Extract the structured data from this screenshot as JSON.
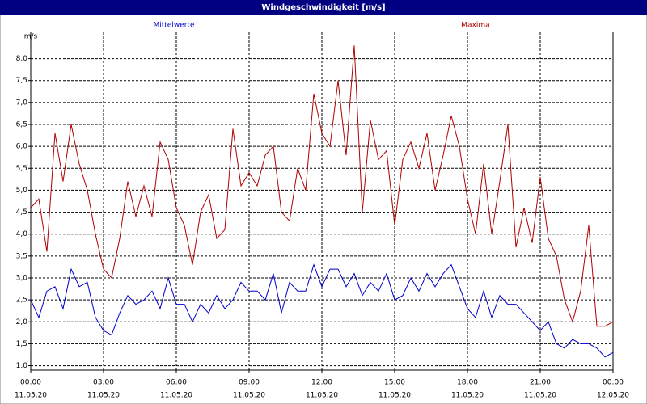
{
  "chart_data": {
    "type": "line",
    "title": "Windgeschwindigkeit [m/s]",
    "y_label": "m/s",
    "x": [
      0,
      20,
      40,
      60,
      80,
      100,
      120,
      140,
      160,
      180,
      200,
      220,
      240,
      260,
      280,
      300,
      320,
      340,
      360,
      380,
      400,
      420,
      440,
      460,
      480,
      500,
      520,
      540,
      560,
      580,
      600,
      620,
      640,
      660,
      680,
      700,
      720,
      740,
      760,
      780,
      800,
      820,
      840,
      860,
      880,
      900,
      920,
      940,
      960,
      980,
      1000,
      1020,
      1040,
      1060,
      1080,
      1100,
      1120,
      1140,
      1160,
      1180,
      1200,
      1220,
      1240,
      1260,
      1280,
      1300,
      1320,
      1340,
      1360,
      1380,
      1400,
      1420,
      1440
    ],
    "series": [
      {
        "name": "Mittelwerte",
        "color": "#0000cc",
        "values": [
          2.5,
          2.1,
          2.7,
          2.8,
          2.3,
          3.2,
          2.8,
          2.9,
          2.1,
          1.8,
          1.7,
          2.2,
          2.6,
          2.4,
          2.5,
          2.7,
          2.3,
          3.0,
          2.4,
          2.4,
          2.0,
          2.4,
          2.2,
          2.6,
          2.3,
          2.5,
          2.9,
          2.7,
          2.7,
          2.5,
          3.1,
          2.2,
          2.9,
          2.7,
          2.7,
          3.3,
          2.8,
          3.2,
          3.2,
          2.8,
          3.1,
          2.6,
          2.9,
          2.7,
          3.1,
          2.5,
          2.6,
          3.0,
          2.7,
          3.1,
          2.8,
          3.1,
          3.3,
          2.8,
          2.3,
          2.1,
          2.7,
          2.1,
          2.6,
          2.4,
          2.4,
          2.2,
          2.0,
          1.8,
          2.0,
          1.5,
          1.4,
          1.6,
          1.5,
          1.5,
          1.4,
          1.2,
          1.3
        ]
      },
      {
        "name": "Maxima",
        "color": "#b00000",
        "values": [
          4.6,
          4.8,
          3.6,
          6.3,
          5.2,
          6.5,
          5.6,
          5.0,
          4.0,
          3.2,
          3.0,
          3.9,
          5.2,
          4.4,
          5.1,
          4.4,
          6.1,
          5.7,
          4.6,
          4.2,
          3.3,
          4.5,
          4.9,
          3.9,
          4.1,
          6.4,
          5.1,
          5.4,
          5.1,
          5.8,
          6.0,
          4.5,
          4.3,
          5.5,
          5.0,
          7.2,
          6.3,
          6.0,
          7.5,
          5.8,
          8.3,
          4.5,
          6.6,
          5.7,
          5.9,
          4.2,
          5.7,
          6.1,
          5.5,
          6.3,
          5.0,
          5.8,
          6.7,
          6.0,
          4.8,
          4.0,
          5.6,
          4.0,
          5.2,
          6.5,
          3.7,
          4.6,
          3.8,
          5.3,
          3.9,
          3.5,
          2.5,
          2.0,
          2.7,
          4.2,
          1.9,
          1.9,
          2.0
        ]
      }
    ],
    "xlim": [
      0,
      1440
    ],
    "xticks": [
      {
        "value": 0,
        "label": "00:00"
      },
      {
        "value": 180,
        "label": "03:00"
      },
      {
        "value": 360,
        "label": "06:00"
      },
      {
        "value": 540,
        "label": "09:00"
      },
      {
        "value": 720,
        "label": "12:00"
      },
      {
        "value": 900,
        "label": "15:00"
      },
      {
        "value": 1080,
        "label": "18:00"
      },
      {
        "value": 1260,
        "label": "21:00"
      },
      {
        "value": 1440,
        "label": "00:00"
      }
    ],
    "xtick_dates": [
      "11.05.20",
      "11.05.20",
      "11.05.20",
      "11.05.20",
      "11.05.20",
      "11.05.20",
      "11.05.20",
      "11.05.20",
      "12.05.20"
    ],
    "ylim": [
      0.9,
      8.6
    ],
    "yticks": [
      {
        "value": 1,
        "label": "1,0"
      },
      {
        "value": 1.5,
        "label": "1,5"
      },
      {
        "value": 2,
        "label": "2,0"
      },
      {
        "value": 2.5,
        "label": "2,5"
      },
      {
        "value": 3,
        "label": "3,0"
      },
      {
        "value": 3.5,
        "label": "3,5"
      },
      {
        "value": 4,
        "label": "4,0"
      },
      {
        "value": 4.5,
        "label": "4,5"
      },
      {
        "value": 5,
        "label": "5,0"
      },
      {
        "value": 5.5,
        "label": "5,5"
      },
      {
        "value": 6,
        "label": "6,0"
      },
      {
        "value": 6.5,
        "label": "6,5"
      },
      {
        "value": 7,
        "label": "7,0"
      },
      {
        "value": 7.5,
        "label": "7,5"
      },
      {
        "value": 8,
        "label": "8,0"
      }
    ],
    "grid": true
  }
}
